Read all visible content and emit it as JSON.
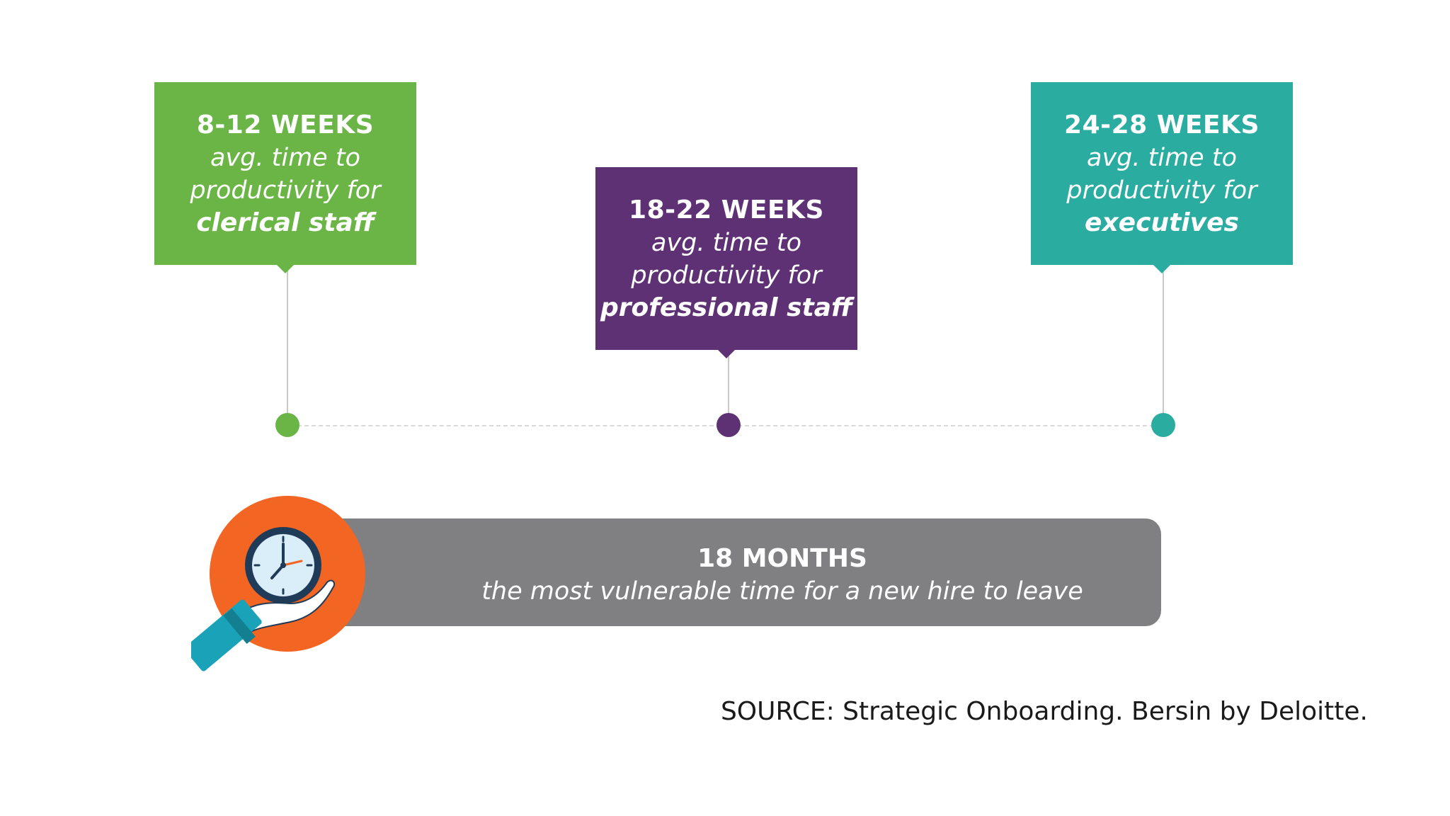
{
  "milestones": [
    {
      "weeks": "8-12 WEEKS",
      "desc_line1": "avg. time to",
      "desc_line2": "productivity for",
      "role": "clerical staff",
      "color": "#6ab545"
    },
    {
      "weeks": "18-22 WEEKS",
      "desc_line1": "avg. time to",
      "desc_line2": "productivity for",
      "role": "professional staff",
      "color": "#5e3175"
    },
    {
      "weeks": "24-28 WEEKS",
      "desc_line1": "avg. time to",
      "desc_line2": "productivity for",
      "role": "executives",
      "color": "#2aaca0"
    }
  ],
  "banner": {
    "title": "18 MONTHS",
    "subtitle": "the most vulnerable time for a new hire to leave",
    "color": "#807f81",
    "icon": "clock-in-hand-icon",
    "icon_color": "#f26522"
  },
  "source": "SOURCE: Strategic Onboarding. Bersin by Deloitte."
}
